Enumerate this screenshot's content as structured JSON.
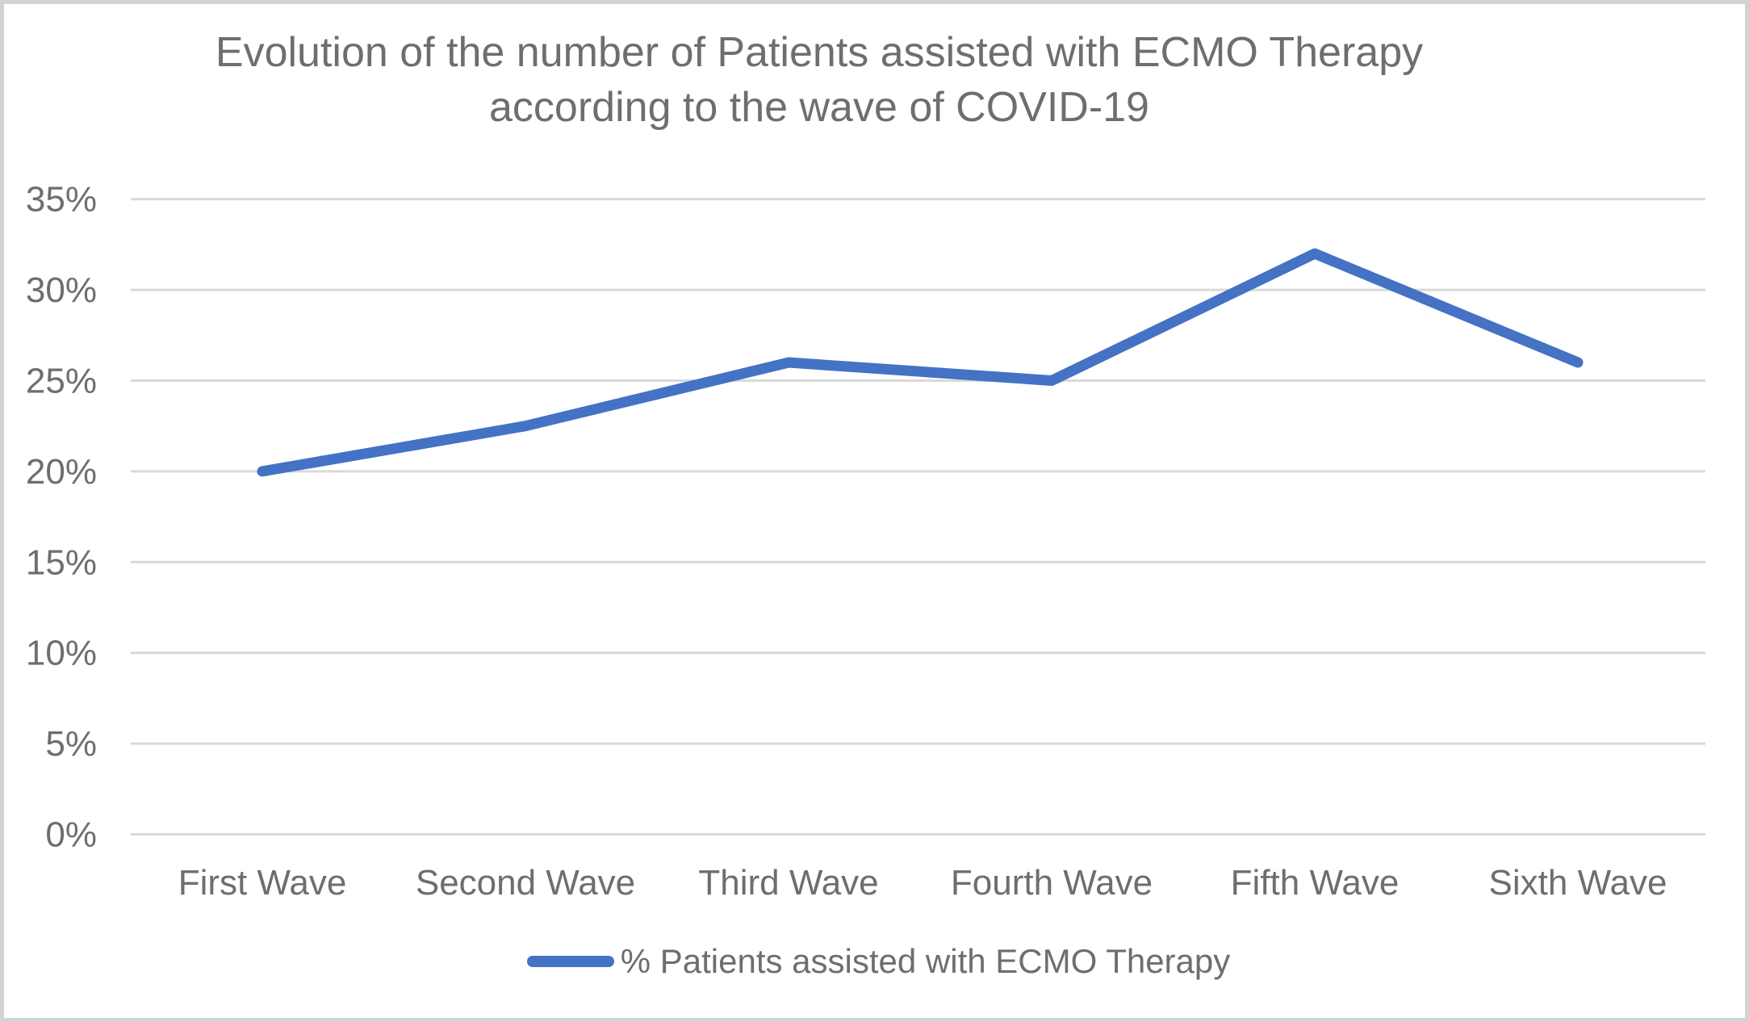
{
  "header": {
    "title_line1": "Evolution of the number of Patients assisted with ECMO Therapy",
    "title_line2": "according to the wave of COVID-19"
  },
  "legend": {
    "label": "% Patients assisted with ECMO Therapy",
    "marker": "blue-line-sample",
    "position": "bottom-center"
  },
  "colors": {
    "series_blue": "#4472C4",
    "gridline": "#D9D9D9",
    "text_gray": "#6C6E70",
    "border": "#D3D3D3",
    "background": "#FFFFFF"
  },
  "chart_data": {
    "type": "line",
    "title": "Evolution of the number of Patients assisted with ECMO Therapy according to the wave of COVID-19",
    "categories": [
      "First Wave",
      "Second Wave",
      "Third Wave",
      "Fourth Wave",
      "Fifth Wave",
      "Sixth Wave"
    ],
    "series": [
      {
        "name": "% Patients assisted with ECMO Therapy",
        "values": [
          20,
          22.5,
          26,
          25,
          32,
          26
        ]
      }
    ],
    "unit": "%",
    "xlabel": "",
    "ylabel": "",
    "ylim": [
      0,
      35
    ],
    "ytick_step": 5,
    "ytick_labels": [
      "0%",
      "5%",
      "10%",
      "15%",
      "20%",
      "25%",
      "30%",
      "35%"
    ],
    "grid": "horizontal-only",
    "legend_position": "bottom"
  }
}
